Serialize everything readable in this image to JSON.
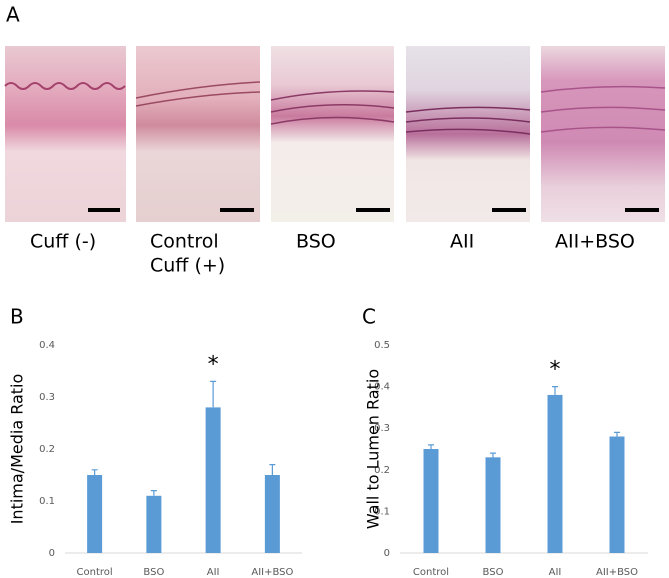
{
  "panel_labels": [
    "A",
    "B",
    "C"
  ],
  "images": [
    {
      "caption": [
        "Cuff (-)"
      ]
    },
    {
      "caption": [
        "Control",
        "Cuff (+)"
      ]
    },
    {
      "caption": [
        "BSO"
      ]
    },
    {
      "caption": [
        "AII"
      ]
    },
    {
      "caption": [
        "AII+BSO"
      ]
    }
  ],
  "chart_data": [
    {
      "type": "bar",
      "y_label": "Intima/Media Ratio",
      "categories": [
        "Control",
        "BSO",
        "AII",
        "AII+BSO"
      ],
      "series": [
        {
          "color": "#5b9bd5",
          "values": [
            0.15,
            0.11,
            0.28,
            0.15
          ],
          "errors": [
            0.01,
            0.01,
            0.05,
            0.02
          ]
        }
      ],
      "ylim": [
        0,
        0.4
      ],
      "yticks": [
        0,
        0.1,
        0.2,
        0.3,
        0.4
      ],
      "annotations": [
        {
          "text": "*",
          "category": "AII"
        }
      ]
    },
    {
      "type": "bar",
      "y_label": "Wall to Lumen Ratio",
      "categories": [
        "Control",
        "BSO",
        "AII",
        "AII+BSO"
      ],
      "series": [
        {
          "color": "#5b9bd5",
          "values": [
            0.25,
            0.23,
            0.38,
            0.28
          ],
          "errors": [
            0.01,
            0.01,
            0.02,
            0.01
          ]
        }
      ],
      "ylim": [
        0,
        0.5
      ],
      "yticks": [
        0,
        0.1,
        0.2,
        0.3,
        0.4,
        0.5
      ],
      "annotations": [
        {
          "text": "*",
          "category": "AII"
        }
      ]
    }
  ]
}
